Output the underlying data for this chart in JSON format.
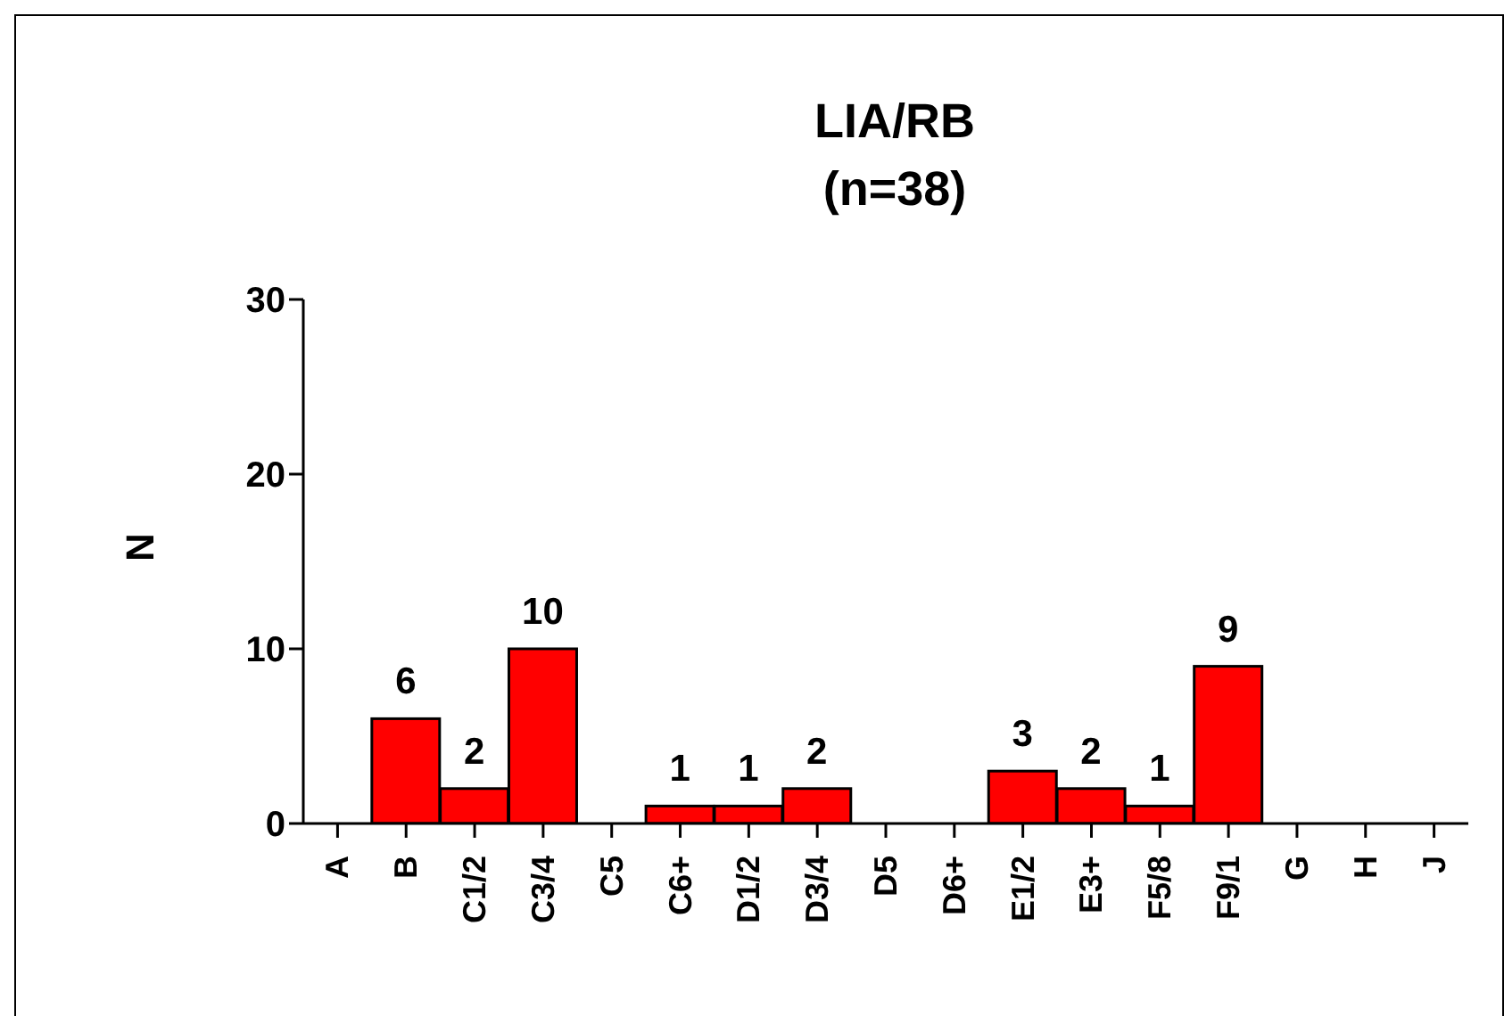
{
  "chart_data": {
    "type": "bar",
    "title": "LIA/RB\n(n=38)",
    "ylabel": "N",
    "categories": [
      "A",
      "B",
      "C1/2",
      "C3/4",
      "C5",
      "C6+",
      "D1/2",
      "D3/4",
      "D5",
      "D6+",
      "E1/2",
      "E3+",
      "F5/8",
      "F9/1",
      "G",
      "H",
      "J"
    ],
    "values": [
      0,
      6,
      2,
      10,
      0,
      1,
      1,
      2,
      0,
      0,
      3,
      2,
      1,
      9,
      0,
      0,
      0
    ],
    "value_labels": [
      null,
      "6",
      "2",
      "10",
      null,
      "1",
      "1",
      "2",
      null,
      null,
      "3",
      "2",
      "1",
      "9",
      null,
      null,
      null
    ],
    "color": "#ff0000",
    "ylim": [
      0,
      30
    ],
    "yticks": [
      0,
      10,
      20,
      30
    ],
    "grid": false,
    "legend": false
  }
}
